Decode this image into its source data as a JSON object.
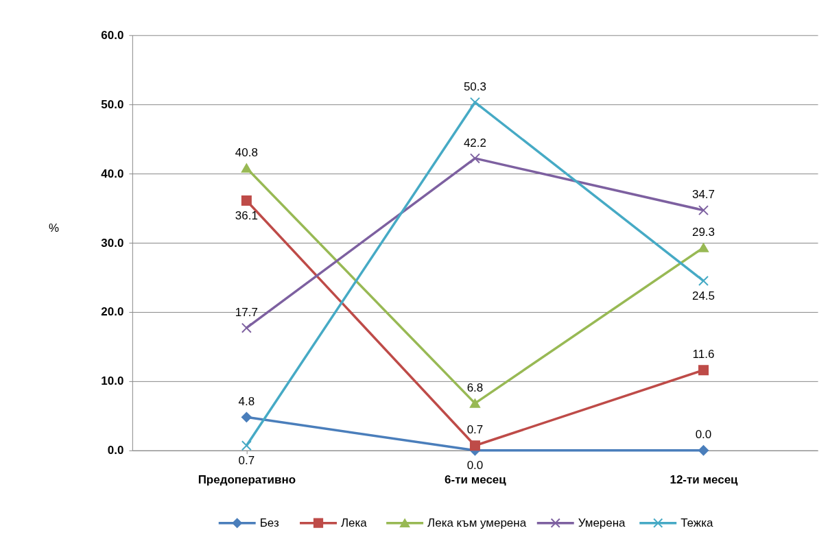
{
  "chart_data": {
    "type": "line",
    "categories": [
      "Предоперативно",
      "6-ти месец",
      "12-ти месец"
    ],
    "ylabel": "%",
    "ylim": [
      0,
      60
    ],
    "yticks": [
      {
        "value": 0,
        "label": "0.0"
      },
      {
        "value": 10,
        "label": "10.0"
      },
      {
        "value": 20,
        "label": "20.0"
      },
      {
        "value": 30,
        "label": "30.0"
      },
      {
        "value": 40,
        "label": "40.0"
      },
      {
        "value": 50,
        "label": "50.0"
      },
      {
        "value": 60,
        "label": "60.0"
      }
    ],
    "grid": "y",
    "legend": "bottom",
    "series": [
      {
        "name": "Без",
        "color": "#4a7ebb",
        "marker": "diamond",
        "values": [
          4.8,
          0,
          0
        ],
        "value_labels": [
          "4.8",
          "0.0",
          "0.0"
        ]
      },
      {
        "name": "Лека",
        "color": "#be4b48",
        "marker": "square",
        "values": [
          36.1,
          0.7,
          11.6
        ],
        "value_labels": [
          "36.1",
          "0.7",
          "11.6"
        ]
      },
      {
        "name": "Лека към умерена",
        "color": "#98b954",
        "marker": "triangle",
        "values": [
          40.8,
          6.8,
          29.3
        ],
        "value_labels": [
          "40.8",
          "6.8",
          "29.3"
        ]
      },
      {
        "name": "Умерена",
        "color": "#7d60a0",
        "marker": "cross",
        "values": [
          17.7,
          42.2,
          34.7
        ],
        "value_labels": [
          "17.7",
          "42.2",
          "34.7"
        ]
      },
      {
        "name": "Тежка",
        "color": "#46aac5",
        "marker": "cross",
        "values": [
          0.7,
          50.3,
          24.5
        ],
        "value_labels": [
          "0.7",
          "50.3",
          "24.5"
        ]
      }
    ]
  }
}
